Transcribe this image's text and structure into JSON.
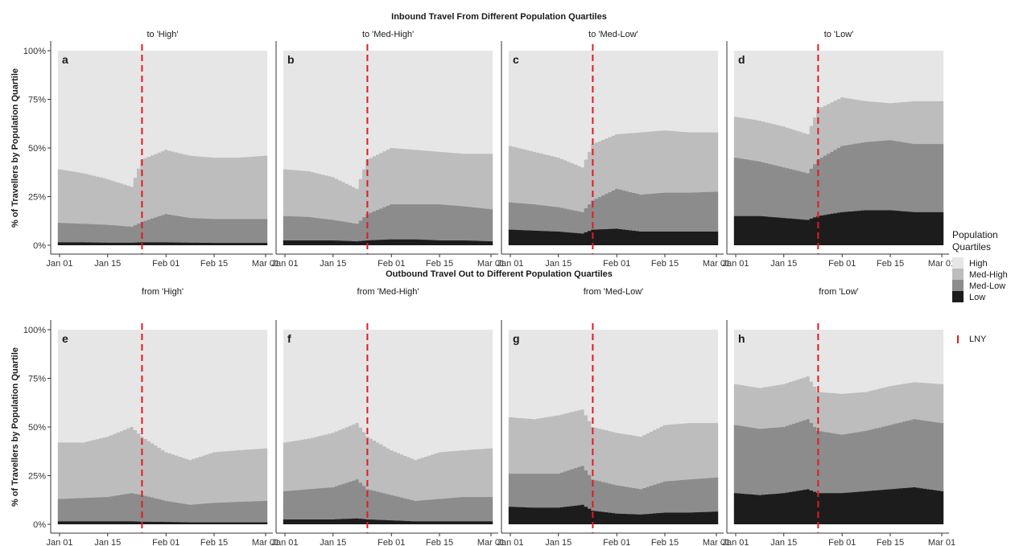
{
  "figure": {
    "ylabel": "% of Travellers by Population Quartile",
    "yticks": [
      "0%",
      "25%",
      "50%",
      "75%",
      "100%"
    ],
    "xticks": [
      "Jan 01",
      "Jan 15",
      "Feb 01",
      "Feb 15",
      "Mar 01"
    ],
    "legend": {
      "title_line1": "Population",
      "title_line2": "Quartiles",
      "items": [
        {
          "label": "High",
          "color": "#e6e6e6"
        },
        {
          "label": "Med-High",
          "color": "#bdbdbd"
        },
        {
          "label": "Med-Low",
          "color": "#8c8c8c"
        },
        {
          "label": "Low",
          "color": "#1c1c1c"
        }
      ],
      "lny_label": "LNY",
      "lny_color": "#e41a1c"
    }
  },
  "chart_data": [
    {
      "type": "area",
      "title": "Inbound Travel From Different Population Quartiles",
      "ylabel": "% of Travellers by Population Quartile",
      "ylim": [
        0,
        100
      ],
      "x_range": [
        "2020-01-01",
        "2020-03-01"
      ],
      "x": [
        "2020-01-01",
        "2020-01-08",
        "2020-01-15",
        "2020-01-22",
        "2020-01-25",
        "2020-02-01",
        "2020-02-08",
        "2020-02-15",
        "2020-02-22",
        "2020-03-01"
      ],
      "lny_date": "2020-01-25",
      "stack_order": [
        "Low",
        "Med-Low",
        "Med-High",
        "High"
      ],
      "panels": [
        {
          "label": "a",
          "strip": "to 'High'",
          "cum": {
            "Low": [
              1.5,
              1.5,
              1.3,
              1.3,
              1.5,
              1.5,
              1.3,
              1.2,
              1.2,
              1.2
            ],
            "Med-Low": [
              11.5,
              11,
              10.5,
              9.5,
              12,
              16,
              14,
              13.5,
              13.5,
              13.5
            ],
            "Med-High": [
              39,
              37,
              34,
              30,
              44,
              49,
              46,
              45,
              45,
              46
            ]
          }
        },
        {
          "label": "b",
          "strip": "to 'Med-High'",
          "cum": {
            "Low": [
              2.5,
              2.5,
              2.5,
              2,
              2.5,
              3,
              3,
              2.5,
              2.5,
              2
            ],
            "Med-Low": [
              15,
              14.5,
              13,
              11,
              16,
              21,
              21,
              21,
              20,
              18.5
            ],
            "Med-High": [
              39,
              38,
              35,
              29,
              44,
              50,
              49,
              48,
              47,
              47
            ]
          }
        },
        {
          "label": "c",
          "strip": "to 'Med-Low'",
          "cum": {
            "Low": [
              8,
              7.5,
              7,
              6,
              8,
              8.5,
              7,
              7,
              7,
              7
            ],
            "Med-Low": [
              22,
              21,
              19.5,
              17,
              23,
              29,
              26,
              27,
              27,
              27.5
            ],
            "Med-High": [
              51,
              48,
              45,
              40,
              52,
              57,
              58,
              59,
              58,
              58
            ]
          }
        },
        {
          "label": "d",
          "strip": "to 'Low'",
          "cum": {
            "Low": [
              15,
              15,
              14,
              13,
              15,
              17,
              18,
              18,
              17,
              17
            ],
            "Med-Low": [
              45,
              43,
              40,
              37,
              44,
              51,
              53,
              54,
              52,
              52
            ],
            "Med-High": [
              66,
              64,
              61,
              57,
              70,
              76,
              74,
              73,
              74,
              74
            ]
          }
        }
      ]
    },
    {
      "type": "area",
      "title": "Outbound Travel Out to Different Population Quartiles",
      "ylabel": "% of Travellers by Population Quartile",
      "ylim": [
        0,
        100
      ],
      "x_range": [
        "2020-01-01",
        "2020-03-01"
      ],
      "x": [
        "2020-01-01",
        "2020-01-08",
        "2020-01-15",
        "2020-01-22",
        "2020-01-25",
        "2020-02-01",
        "2020-02-08",
        "2020-02-15",
        "2020-02-22",
        "2020-03-01"
      ],
      "lny_date": "2020-01-25",
      "stack_order": [
        "Low",
        "Med-Low",
        "Med-High",
        "High"
      ],
      "panels": [
        {
          "label": "e",
          "strip": "from 'High'",
          "cum": {
            "Low": [
              1.5,
              1.5,
              1.5,
              1.5,
              1.3,
              1.2,
              1,
              1,
              1,
              1
            ],
            "Med-Low": [
              13,
              13.5,
              14,
              16,
              15,
              12,
              10,
              11,
              11.5,
              12
            ],
            "Med-High": [
              42,
              42,
              45,
              50,
              45,
              37,
              33,
              37,
              38,
              39
            ]
          }
        },
        {
          "label": "f",
          "strip": "from 'Med-High'",
          "cum": {
            "Low": [
              2.5,
              2.5,
              2.5,
              3,
              2.5,
              2,
              1.5,
              1.5,
              1.5,
              1.5
            ],
            "Med-Low": [
              17,
              18,
              19,
              23,
              18,
              15,
              12,
              13,
              14,
              14
            ],
            "Med-High": [
              42,
              44,
              47,
              52,
              45,
              38,
              33,
              37,
              38,
              39
            ]
          }
        },
        {
          "label": "g",
          "strip": "from 'Med-Low'",
          "cum": {
            "Low": [
              9,
              8.5,
              8.5,
              10,
              7,
              5.5,
              5,
              6,
              6,
              6.5
            ],
            "Med-Low": [
              26,
              26,
              26,
              30,
              23,
              20,
              18,
              22,
              23,
              24
            ],
            "Med-High": [
              55,
              54,
              56,
              59,
              50,
              47,
              45,
              51,
              52,
              52
            ]
          }
        },
        {
          "label": "h",
          "strip": "from 'Low'",
          "cum": {
            "Low": [
              16,
              15,
              16,
              18,
              16,
              16,
              17,
              18,
              19,
              17
            ],
            "Med-Low": [
              51,
              49,
              50,
              54,
              48,
              46,
              48,
              51,
              54,
              52
            ],
            "Med-High": [
              72,
              70,
              72,
              76,
              68,
              67,
              68,
              71,
              73,
              72
            ]
          }
        }
      ]
    }
  ]
}
